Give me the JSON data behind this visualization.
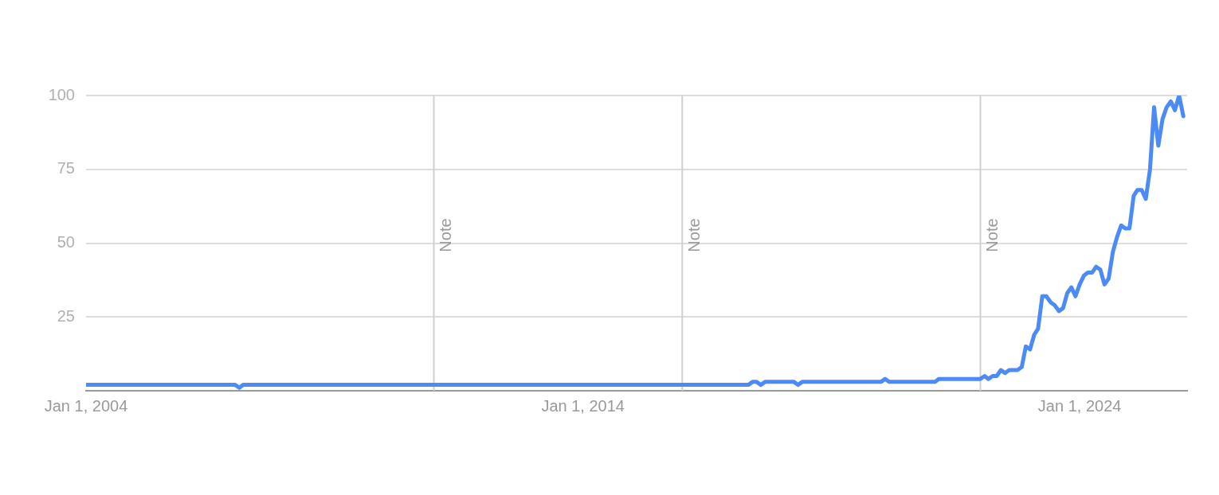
{
  "chart_data": {
    "type": "line",
    "series": [
      {
        "color": "#4c8bf5",
        "x": [
          "2004-01",
          "2007-01",
          "2007-02",
          "2007-03",
          "2017-05",
          "2017-06",
          "2017-07",
          "2017-08",
          "2017-09",
          "2018-04",
          "2018-05",
          "2018-06",
          "2020-01",
          "2020-02",
          "2020-03",
          "2021-01",
          "2021-02",
          "2021-03",
          "2022-01",
          "2022-02",
          "2022-03",
          "2022-04",
          "2022-05",
          "2022-06",
          "2022-07",
          "2022-08",
          "2022-09",
          "2022-10",
          "2022-11",
          "2022-12",
          "2023-01",
          "2023-02",
          "2023-03",
          "2023-04",
          "2023-05",
          "2023-06",
          "2023-07",
          "2023-08",
          "2023-09",
          "2023-10",
          "2023-11",
          "2023-12",
          "2024-01",
          "2024-02",
          "2024-03",
          "2024-04",
          "2024-05",
          "2024-06",
          "2024-07",
          "2024-08",
          "2024-09",
          "2024-10",
          "2024-11",
          "2024-12",
          "2025-01",
          "2025-02",
          "2025-03",
          "2025-04",
          "2025-05",
          "2025-06",
          "2025-07",
          "2025-08",
          "2025-09",
          "2025-10",
          "2025-11",
          "2025-12",
          "2026-01",
          "2026-02"
        ],
        "values": [
          2,
          2,
          1,
          2,
          2,
          3,
          3,
          2,
          3,
          3,
          2,
          3,
          3,
          4,
          3,
          3,
          3,
          4,
          4,
          5,
          4,
          5,
          5,
          7,
          6,
          7,
          7,
          7,
          8,
          15,
          14,
          19,
          21,
          32,
          32,
          30,
          29,
          27,
          28,
          33,
          35,
          32,
          36,
          39,
          40,
          40,
          42,
          41,
          36,
          38,
          47,
          52,
          56,
          55,
          55,
          66,
          68,
          68,
          65,
          75,
          96,
          83,
          92,
          96,
          98,
          95,
          100,
          93
        ]
      }
    ],
    "xlim": [
      "2004-01",
      "2026-03"
    ],
    "xticks": [
      {
        "value": "2004-01-01",
        "label": "Jan 1, 2004"
      },
      {
        "value": "2014-01-01",
        "label": "Jan 1, 2014"
      },
      {
        "value": "2024-01-01",
        "label": "Jan 1, 2024"
      }
    ],
    "ylim": [
      0,
      100
    ],
    "yticks": [
      25,
      50,
      75,
      100
    ],
    "grid": "y",
    "legend": false,
    "marker": "none",
    "line_style": "solid",
    "ref_lines": [
      {
        "axis": "x",
        "value": "2011-01-01",
        "label": "Note",
        "color": "#d0d0d0"
      },
      {
        "axis": "x",
        "value": "2016-01-01",
        "label": "Note",
        "color": "#d0d0d0"
      },
      {
        "axis": "x",
        "value": "2022-01-01",
        "label": "Note",
        "color": "#d0d0d0"
      }
    ]
  }
}
